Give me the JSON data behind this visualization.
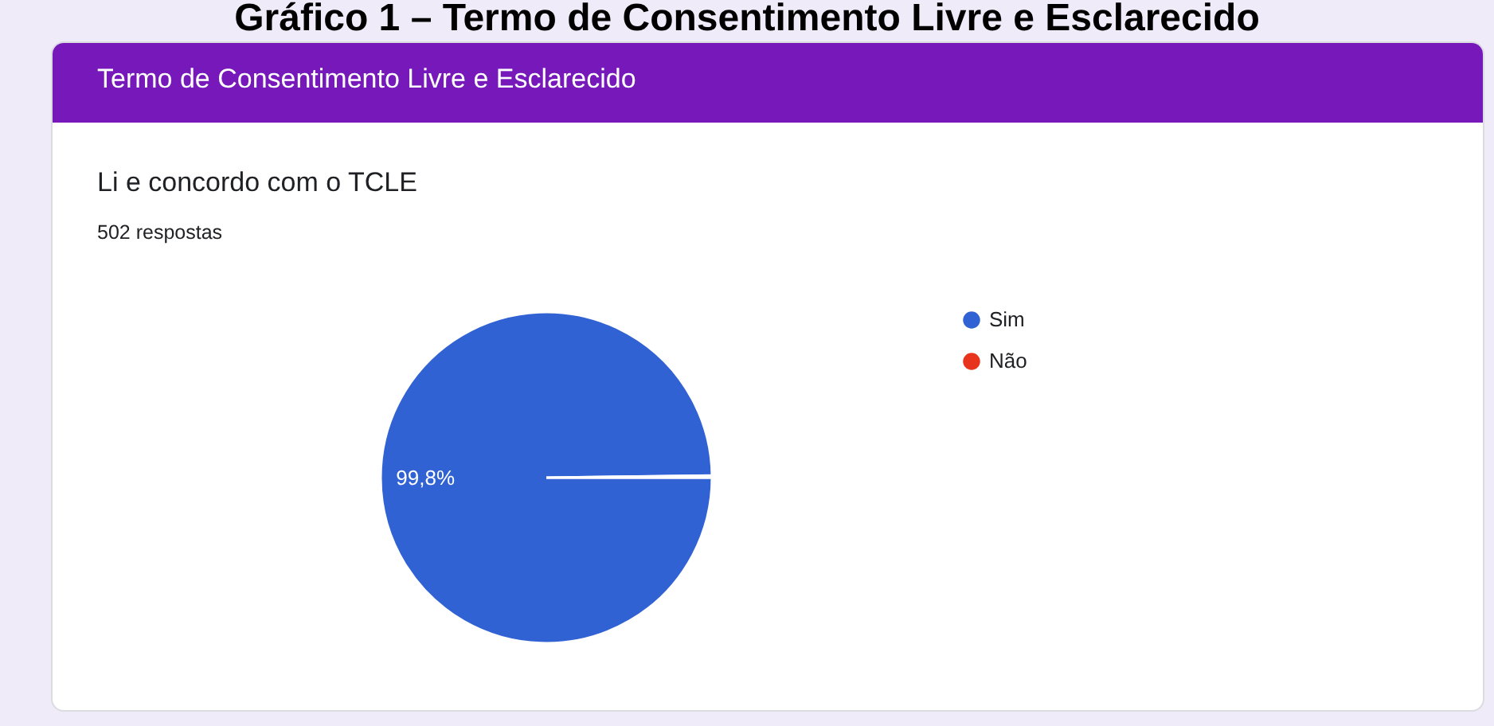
{
  "chart_data": {
    "type": "pie",
    "title": "Li e concordo com o TCLE",
    "subtitle": "502 respostas",
    "annotations": [
      "Gráfico 1 – Termo de Consentimento Livre e Esclarecido",
      "Termo de Consentimento Livre e Esclarecido"
    ],
    "categories": [
      "Sim",
      "Não"
    ],
    "values": [
      99.8,
      0.2
    ],
    "colors": [
      "#3162d4",
      "#e8341c"
    ],
    "value_labels": [
      "99,8%",
      null
    ],
    "legend": "right"
  }
}
